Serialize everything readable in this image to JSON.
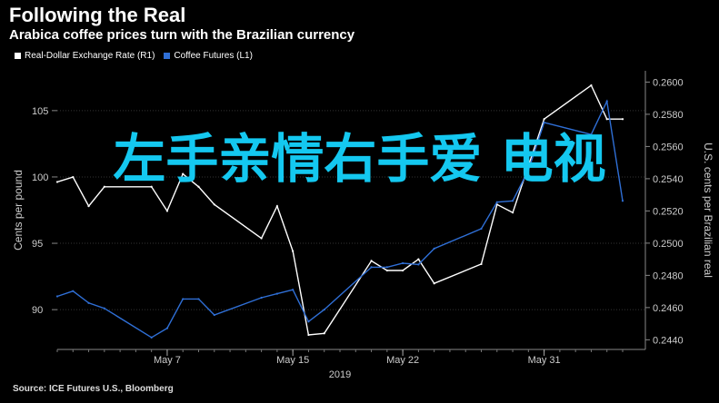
{
  "header": {
    "title": "Following the Real",
    "subtitle": "Arabica coffee prices turn with the Brazilian currency"
  },
  "legend": {
    "items": [
      {
        "label": "Real-Dollar Exchange Rate (R1)",
        "color": "#ffffff"
      },
      {
        "label": "Coffee Futures (L1)",
        "color": "#2f6fd6"
      }
    ]
  },
  "overlay_text": "左手亲情右手爱 电视",
  "source": "Source: ICE Futures U.S., Bloomberg",
  "chart_data": {
    "type": "line",
    "x": [
      "2019-04-30",
      "2019-05-01",
      "2019-05-02",
      "2019-05-03",
      "2019-05-06",
      "2019-05-07",
      "2019-05-08",
      "2019-05-09",
      "2019-05-10",
      "2019-05-13",
      "2019-05-14",
      "2019-05-15",
      "2019-05-16",
      "2019-05-17",
      "2019-05-20",
      "2019-05-21",
      "2019-05-22",
      "2019-05-23",
      "2019-05-24",
      "2019-05-27",
      "2019-05-28",
      "2019-05-29",
      "2019-05-30",
      "2019-05-31",
      "2019-06-03",
      "2019-06-04",
      "2019-06-05"
    ],
    "x_ticks": [
      "May 7",
      "May 15",
      "May 22",
      "May 31"
    ],
    "x_year_label": "2019",
    "left_axis": {
      "label": "Cents per pound",
      "ticks": [
        "90",
        "95",
        "100",
        "105"
      ],
      "range": [
        87,
        108
      ]
    },
    "right_axis": {
      "label": "U.S. cents per Brazilian real",
      "ticks": [
        "0.2440",
        "0.2460",
        "0.2480",
        "0.2500",
        "0.2520",
        "0.2540",
        "0.2560",
        "0.2580",
        "0.2600"
      ],
      "range": [
        0.2434,
        0.2607
      ]
    },
    "series": [
      {
        "name": "Real-Dollar Exchange Rate (R1)",
        "axis": "right",
        "color": "#ffffff",
        "values": [
          0.2538,
          0.2541,
          0.2523,
          0.2535,
          0.2535,
          0.252,
          0.2543,
          0.2535,
          0.2524,
          0.2503,
          0.2523,
          0.2495,
          0.2443,
          0.2444,
          0.2489,
          0.2483,
          0.2483,
          0.249,
          0.2475,
          0.2487,
          0.2524,
          0.2519,
          0.2548,
          0.2577,
          0.2598,
          0.2577,
          0.2577
        ]
      },
      {
        "name": "Coffee Futures (L1)",
        "axis": "left",
        "color": "#2f6fd6",
        "values": [
          91.0,
          91.4,
          90.5,
          90.1,
          87.9,
          88.6,
          90.8,
          90.8,
          89.6,
          90.9,
          91.2,
          91.5,
          89.1,
          90.0,
          93.2,
          93.2,
          93.5,
          93.4,
          94.6,
          96.1,
          98.1,
          98.2,
          100.5,
          104.1,
          103.2,
          105.7,
          98.2
        ]
      }
    ]
  }
}
